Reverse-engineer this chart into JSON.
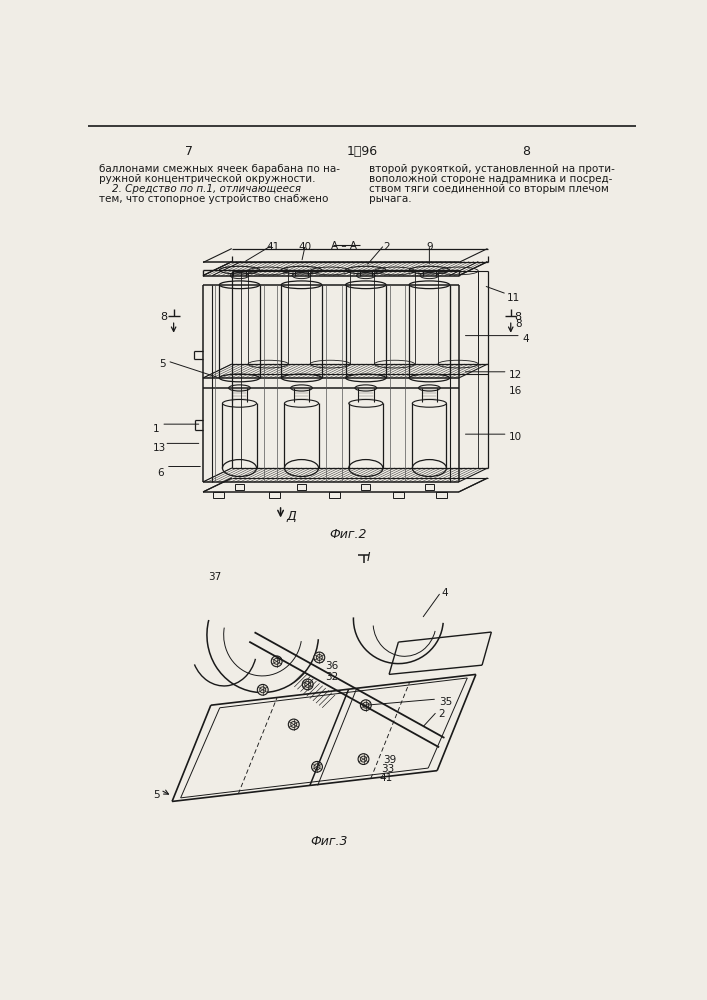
{
  "page_width": 7.07,
  "page_height": 10.0,
  "bg_color": "#f0ede6",
  "line_color": "#1a1a1a",
  "page_number_left": "7",
  "page_number_right": "8",
  "text_left_lines": [
    "баллонами смежных ячеек барабана по на-",
    "ружной концентрической окружности.",
    "    2. Средство по п.1, отличающееся",
    "тем, что стопорное устройство снабжено"
  ],
  "text_right_lines": [
    "второй рукояткой, установленной на проти-",
    "воположной стороне надрамника и посред-",
    "ством тяги соединенной со вторым плечом",
    "рычага."
  ]
}
